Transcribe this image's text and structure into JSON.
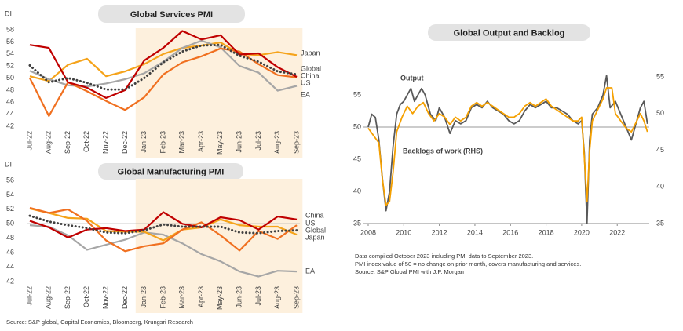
{
  "chart_data": [
    {
      "type": "line",
      "title": "Global Services PMI",
      "y_label": "DI",
      "categories": [
        "Jul-22",
        "Aug-22",
        "Sep-22",
        "Oct-22",
        "Nov-22",
        "Dec-22",
        "Jan-23",
        "Feb-23",
        "Mar-23",
        "Apr-23",
        "May-23",
        "Jun-23",
        "Jul-23",
        "Aug-23",
        "Sep-23"
      ],
      "ylim": [
        42,
        58
      ],
      "yticks": [
        42,
        44,
        46,
        48,
        50,
        52,
        54,
        56,
        58
      ],
      "reference_line": 50,
      "highlight": [
        6,
        14
      ],
      "series": [
        {
          "name": "Japan",
          "color": "#f5a31a",
          "values": [
            50.3,
            49.5,
            52.2,
            53.2,
            50.3,
            51.1,
            52.3,
            54.0,
            55.0,
            55.4,
            55.9,
            54.0,
            53.8,
            54.3,
            53.8
          ]
        },
        {
          "name": "EA",
          "color": "#a6a6a6",
          "values": [
            51.2,
            49.8,
            48.8,
            48.6,
            49.1,
            49.8,
            50.8,
            52.7,
            55.0,
            56.2,
            55.1,
            52.0,
            50.9,
            47.9,
            48.7
          ]
        },
        {
          "name": "US",
          "color": "#f07020",
          "values": [
            50.0,
            43.7,
            49.3,
            47.8,
            46.2,
            44.7,
            46.8,
            50.6,
            52.6,
            53.6,
            54.9,
            54.4,
            52.3,
            50.5,
            50.1
          ]
        },
        {
          "name": "China",
          "color": "#c00000",
          "values": [
            55.5,
            55.0,
            49.3,
            48.4,
            46.7,
            48.0,
            52.9,
            55.0,
            57.8,
            56.4,
            57.1,
            53.9,
            54.1,
            51.8,
            50.2
          ]
        },
        {
          "name": "Global",
          "color": "#404040",
          "dotted": true,
          "values": [
            52.1,
            49.3,
            50.0,
            49.2,
            48.1,
            48.1,
            50.0,
            52.6,
            54.4,
            55.4,
            55.5,
            53.7,
            52.7,
            51.1,
            50.6
          ]
        }
      ]
    },
    {
      "type": "line",
      "title": "Global Manufacturing PMI",
      "y_label": "DI",
      "categories": [
        "Jul-22",
        "Aug-22",
        "Sep-22",
        "Oct-22",
        "Nov-22",
        "Dec-22",
        "Jan-23",
        "Feb-23",
        "Mar-23",
        "Apr-23",
        "May-23",
        "Jun-23",
        "Jul-23",
        "Aug-23",
        "Sep-23"
      ],
      "ylim": [
        42,
        56
      ],
      "yticks": [
        42,
        44,
        46,
        48,
        50,
        52,
        54,
        56
      ],
      "reference_line": 50,
      "highlight": [
        6,
        14
      ],
      "series": [
        {
          "name": "EA",
          "color": "#a6a6a6",
          "values": [
            49.8,
            49.6,
            48.4,
            46.4,
            47.1,
            47.8,
            48.8,
            48.5,
            47.3,
            45.8,
            44.8,
            43.4,
            42.7,
            43.5,
            43.4
          ]
        },
        {
          "name": "Japan",
          "color": "#f5a31a",
          "values": [
            52.1,
            51.5,
            50.8,
            50.7,
            49.0,
            48.9,
            48.9,
            47.7,
            49.2,
            49.5,
            50.6,
            49.8,
            49.6,
            49.6,
            48.5
          ]
        },
        {
          "name": "US",
          "color": "#f07020",
          "values": [
            52.2,
            51.5,
            52.0,
            50.4,
            47.7,
            46.2,
            46.9,
            47.3,
            49.2,
            50.2,
            48.4,
            46.3,
            49.0,
            47.9,
            49.8
          ]
        },
        {
          "name": "China",
          "color": "#c00000",
          "values": [
            50.4,
            49.5,
            48.1,
            49.2,
            49.4,
            49.0,
            49.2,
            51.6,
            50.0,
            49.5,
            50.9,
            50.5,
            49.2,
            51.0,
            50.6
          ]
        },
        {
          "name": "Global",
          "color": "#404040",
          "dotted": true,
          "values": [
            51.1,
            50.3,
            49.8,
            49.4,
            48.8,
            48.7,
            49.1,
            49.9,
            49.6,
            49.6,
            49.6,
            48.8,
            48.7,
            49.0,
            49.1
          ]
        }
      ]
    },
    {
      "type": "line",
      "title": "Global Output and Backlog",
      "xlim": [
        2008,
        2023.8
      ],
      "xticks": [
        2008,
        2010,
        2012,
        2014,
        2016,
        2018,
        2020,
        2022
      ],
      "ylim": [
        35,
        57.8
      ],
      "yticks": [
        35,
        40,
        45,
        50,
        55
      ],
      "y2lim": [
        35,
        55
      ],
      "y2ticks": [
        35,
        40,
        45,
        50,
        55
      ],
      "reference_line": 50,
      "series": [
        {
          "name": "Output",
          "color": "#595959",
          "x": [
            2008.0,
            2008.2,
            2008.4,
            2008.6,
            2008.8,
            2009.0,
            2009.2,
            2009.4,
            2009.6,
            2009.8,
            2010.0,
            2010.2,
            2010.4,
            2010.6,
            2010.8,
            2011.0,
            2011.2,
            2011.5,
            2011.8,
            2012.0,
            2012.3,
            2012.6,
            2012.9,
            2013.2,
            2013.5,
            2013.8,
            2014.1,
            2014.4,
            2014.7,
            2015.0,
            2015.3,
            2015.6,
            2015.9,
            2016.2,
            2016.5,
            2016.8,
            2017.1,
            2017.4,
            2017.7,
            2018.0,
            2018.3,
            2018.6,
            2018.9,
            2019.2,
            2019.5,
            2019.8,
            2020.0,
            2020.15,
            2020.3,
            2020.45,
            2020.6,
            2020.9,
            2021.2,
            2021.4,
            2021.6,
            2021.9,
            2022.2,
            2022.5,
            2022.8,
            2023.0,
            2023.3,
            2023.5,
            2023.7
          ],
          "values": [
            50,
            52,
            51.5,
            48,
            42,
            37,
            40,
            47,
            52,
            53.5,
            54,
            55,
            56,
            54,
            55,
            56,
            55,
            52,
            51,
            53,
            51.5,
            49,
            51,
            50.5,
            51,
            53,
            53.5,
            53,
            54,
            53,
            52.5,
            52,
            51,
            50.5,
            51,
            52.5,
            53.5,
            53,
            53.5,
            54,
            53,
            53,
            52.5,
            52,
            51,
            50.5,
            51,
            46,
            35,
            48,
            52,
            53,
            55,
            58,
            53,
            54,
            52,
            50,
            48,
            50,
            53,
            54,
            50.5
          ]
        },
        {
          "name": "Backlogs of work (RHS)",
          "color": "#f5a000",
          "axis": "y2",
          "x": [
            2008.0,
            2008.3,
            2008.6,
            2008.8,
            2009.0,
            2009.2,
            2009.4,
            2009.6,
            2009.9,
            2010.2,
            2010.5,
            2010.8,
            2011.1,
            2011.4,
            2011.7,
            2012.0,
            2012.3,
            2012.6,
            2012.9,
            2013.2,
            2013.5,
            2013.8,
            2014.1,
            2014.4,
            2014.7,
            2015.0,
            2015.3,
            2015.6,
            2015.9,
            2016.2,
            2016.5,
            2016.8,
            2017.1,
            2017.4,
            2017.7,
            2018.0,
            2018.3,
            2018.6,
            2018.9,
            2019.2,
            2019.5,
            2019.8,
            2020.0,
            2020.15,
            2020.3,
            2020.45,
            2020.6,
            2020.9,
            2021.2,
            2021.4,
            2021.7,
            2021.9,
            2022.2,
            2022.5,
            2022.8,
            2023.0,
            2023.3,
            2023.5,
            2023.7
          ],
          "values": [
            48,
            47,
            46,
            41,
            37.5,
            38,
            42,
            47.5,
            49.5,
            51,
            50,
            51,
            51.5,
            50,
            49,
            50,
            49.5,
            48.5,
            49.5,
            49,
            49.5,
            51,
            51.5,
            51,
            51.5,
            51,
            50.5,
            50,
            49.5,
            49.5,
            50,
            51,
            51.5,
            51,
            51.5,
            52,
            51,
            50.5,
            50,
            49.5,
            49,
            49,
            49.5,
            44,
            38,
            45,
            49,
            50.5,
            52,
            53.5,
            53.5,
            50,
            49,
            48,
            47.5,
            48.5,
            50,
            49,
            47.5
          ]
        }
      ],
      "notes": [
        "Data compiled October 2023 including PMI data to September 2023.",
        "PMI index value of 50 = no change on prior month, covers manufacturing and services.",
        "Source: S&P Global PMI with J.P. Morgan"
      ]
    }
  ],
  "source": "Source: S&P global, Capital Economics, Bloomberg, Krungsri Research"
}
